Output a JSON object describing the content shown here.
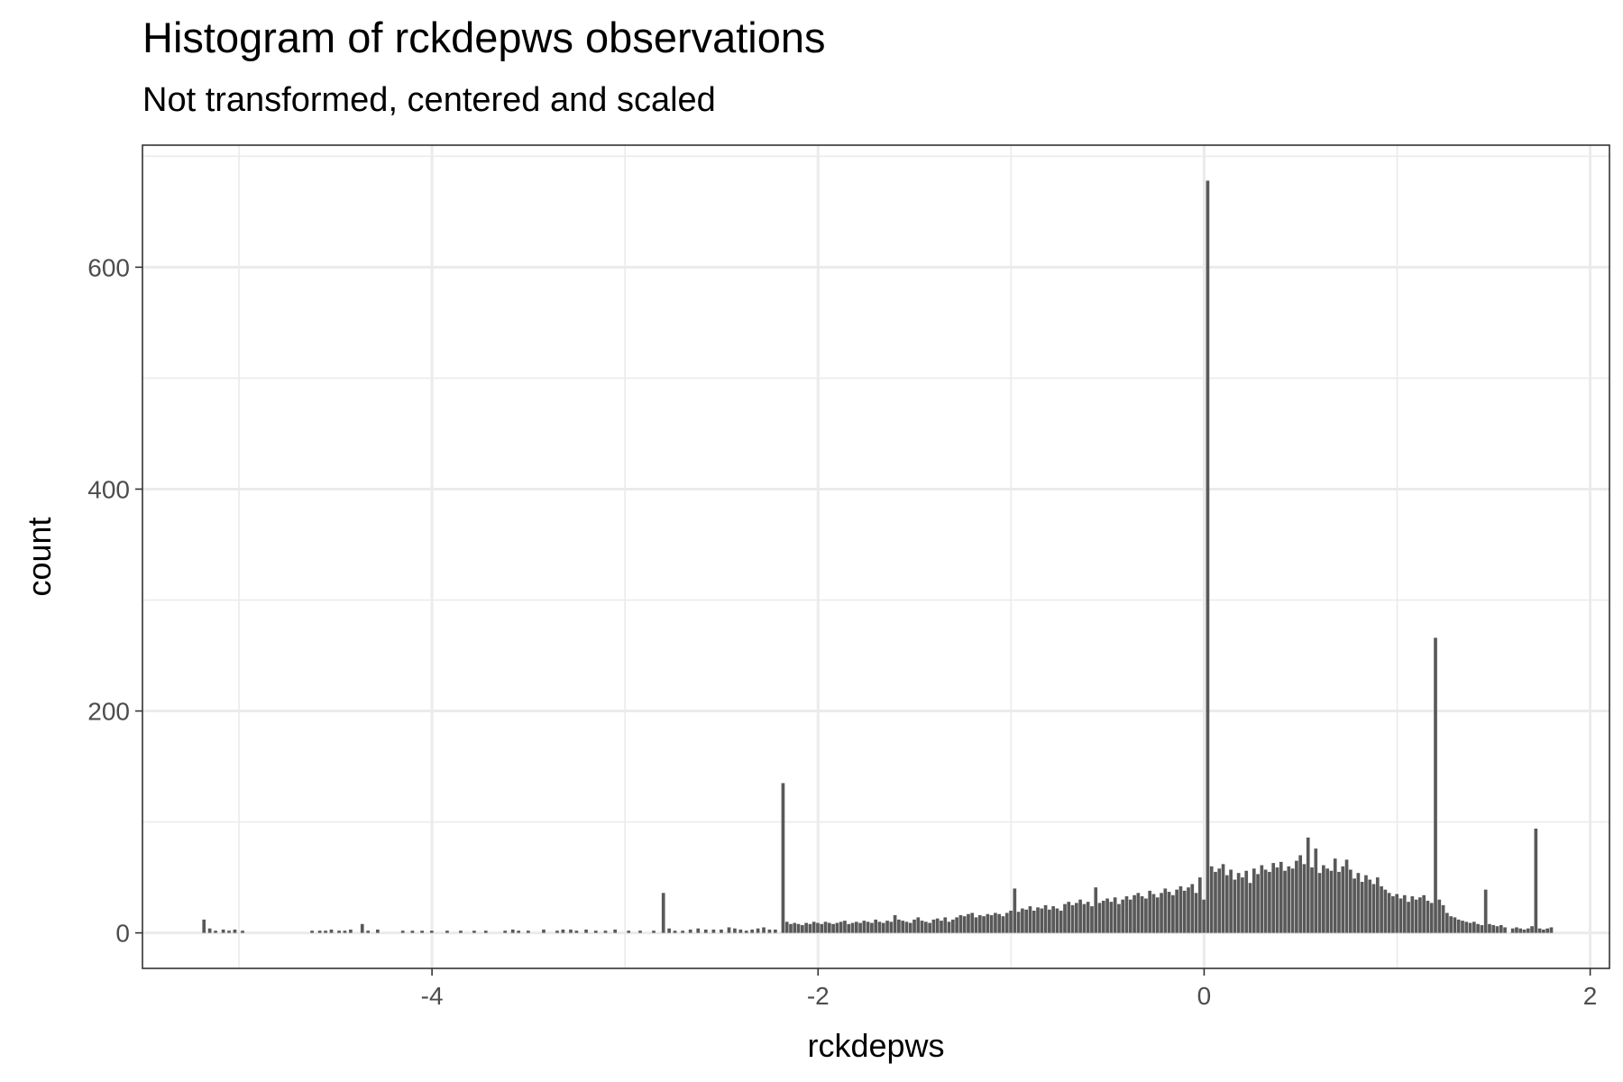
{
  "chart_data": {
    "type": "bar",
    "title": "Histogram of rckdepws observations",
    "subtitle": "Not transformed, centered and scaled",
    "xlabel": "rckdepws",
    "ylabel": "count",
    "xlim": [
      -5.5,
      2.1
    ],
    "ylim": [
      -32,
      710
    ],
    "x_ticks": [
      -4,
      -2,
      0,
      2
    ],
    "y_ticks": [
      0,
      200,
      400,
      600
    ],
    "bin_width": 0.02,
    "grid": true,
    "bar_color": "#595959",
    "bars": [
      [
        -5.18,
        12
      ],
      [
        -5.15,
        4
      ],
      [
        -5.12,
        2
      ],
      [
        -5.08,
        3
      ],
      [
        -5.05,
        2
      ],
      [
        -5.02,
        3
      ],
      [
        -4.98,
        2
      ],
      [
        -4.62,
        2
      ],
      [
        -4.58,
        2
      ],
      [
        -4.55,
        2
      ],
      [
        -4.52,
        3
      ],
      [
        -4.48,
        2
      ],
      [
        -4.45,
        2
      ],
      [
        -4.42,
        3
      ],
      [
        -4.36,
        8
      ],
      [
        -4.33,
        2
      ],
      [
        -4.28,
        3
      ],
      [
        -4.15,
        2
      ],
      [
        -4.1,
        2
      ],
      [
        -4.05,
        2
      ],
      [
        -4.0,
        2
      ],
      [
        -3.92,
        2
      ],
      [
        -3.85,
        2
      ],
      [
        -3.78,
        2
      ],
      [
        -3.72,
        2
      ],
      [
        -3.62,
        2
      ],
      [
        -3.58,
        3
      ],
      [
        -3.55,
        2
      ],
      [
        -3.5,
        2
      ],
      [
        -3.42,
        3
      ],
      [
        -3.35,
        2
      ],
      [
        -3.32,
        3
      ],
      [
        -3.28,
        3
      ],
      [
        -3.25,
        2
      ],
      [
        -3.2,
        3
      ],
      [
        -3.15,
        2
      ],
      [
        -3.1,
        2
      ],
      [
        -3.05,
        3
      ],
      [
        -2.98,
        2
      ],
      [
        -2.92,
        2
      ],
      [
        -2.85,
        2
      ],
      [
        -2.8,
        36
      ],
      [
        -2.77,
        4
      ],
      [
        -2.74,
        2
      ],
      [
        -2.7,
        2
      ],
      [
        -2.66,
        3
      ],
      [
        -2.62,
        4
      ],
      [
        -2.58,
        3
      ],
      [
        -2.54,
        3
      ],
      [
        -2.5,
        3
      ],
      [
        -2.46,
        5
      ],
      [
        -2.43,
        4
      ],
      [
        -2.4,
        3
      ],
      [
        -2.37,
        2
      ],
      [
        -2.34,
        3
      ],
      [
        -2.31,
        4
      ],
      [
        -2.28,
        5
      ],
      [
        -2.25,
        3
      ],
      [
        -2.22,
        3
      ],
      [
        -2.18,
        135
      ],
      [
        -2.16,
        10
      ],
      [
        -2.14,
        8
      ],
      [
        -2.12,
        9
      ],
      [
        -2.1,
        8
      ],
      [
        -2.08,
        7
      ],
      [
        -2.06,
        9
      ],
      [
        -2.04,
        8
      ],
      [
        -2.02,
        10
      ],
      [
        -2.0,
        9
      ],
      [
        -1.98,
        8
      ],
      [
        -1.96,
        10
      ],
      [
        -1.94,
        9
      ],
      [
        -1.92,
        8
      ],
      [
        -1.9,
        9
      ],
      [
        -1.88,
        10
      ],
      [
        -1.86,
        11
      ],
      [
        -1.84,
        8
      ],
      [
        -1.82,
        9
      ],
      [
        -1.8,
        10
      ],
      [
        -1.78,
        9
      ],
      [
        -1.76,
        11
      ],
      [
        -1.74,
        10
      ],
      [
        -1.72,
        9
      ],
      [
        -1.7,
        12
      ],
      [
        -1.68,
        10
      ],
      [
        -1.66,
        9
      ],
      [
        -1.64,
        11
      ],
      [
        -1.62,
        10
      ],
      [
        -1.6,
        16
      ],
      [
        -1.58,
        12
      ],
      [
        -1.56,
        11
      ],
      [
        -1.54,
        10
      ],
      [
        -1.52,
        9
      ],
      [
        -1.5,
        12
      ],
      [
        -1.48,
        14
      ],
      [
        -1.46,
        11
      ],
      [
        -1.44,
        10
      ],
      [
        -1.42,
        9
      ],
      [
        -1.4,
        12
      ],
      [
        -1.38,
        13
      ],
      [
        -1.36,
        11
      ],
      [
        -1.34,
        14
      ],
      [
        -1.32,
        10
      ],
      [
        -1.3,
        12
      ],
      [
        -1.28,
        14
      ],
      [
        -1.26,
        16
      ],
      [
        -1.24,
        15
      ],
      [
        -1.22,
        17
      ],
      [
        -1.2,
        18
      ],
      [
        -1.18,
        14
      ],
      [
        -1.16,
        16
      ],
      [
        -1.14,
        15
      ],
      [
        -1.12,
        17
      ],
      [
        -1.1,
        16
      ],
      [
        -1.08,
        18
      ],
      [
        -1.06,
        17
      ],
      [
        -1.04,
        15
      ],
      [
        -1.02,
        18
      ],
      [
        -1.0,
        20
      ],
      [
        -0.98,
        40
      ],
      [
        -0.96,
        19
      ],
      [
        -0.94,
        22
      ],
      [
        -0.92,
        21
      ],
      [
        -0.9,
        24
      ],
      [
        -0.88,
        20
      ],
      [
        -0.86,
        23
      ],
      [
        -0.84,
        22
      ],
      [
        -0.82,
        25
      ],
      [
        -0.8,
        21
      ],
      [
        -0.78,
        24
      ],
      [
        -0.76,
        22
      ],
      [
        -0.74,
        20
      ],
      [
        -0.72,
        26
      ],
      [
        -0.7,
        28
      ],
      [
        -0.68,
        25
      ],
      [
        -0.66,
        27
      ],
      [
        -0.64,
        30
      ],
      [
        -0.62,
        26
      ],
      [
        -0.6,
        28
      ],
      [
        -0.58,
        24
      ],
      [
        -0.56,
        41
      ],
      [
        -0.54,
        27
      ],
      [
        -0.52,
        29
      ],
      [
        -0.5,
        31
      ],
      [
        -0.48,
        28
      ],
      [
        -0.46,
        32
      ],
      [
        -0.44,
        26
      ],
      [
        -0.42,
        30
      ],
      [
        -0.4,
        33
      ],
      [
        -0.38,
        30
      ],
      [
        -0.36,
        34
      ],
      [
        -0.34,
        36
      ],
      [
        -0.32,
        33
      ],
      [
        -0.3,
        31
      ],
      [
        -0.28,
        38
      ],
      [
        -0.26,
        35
      ],
      [
        -0.24,
        32
      ],
      [
        -0.22,
        36
      ],
      [
        -0.2,
        40
      ],
      [
        -0.18,
        37
      ],
      [
        -0.16,
        34
      ],
      [
        -0.14,
        39
      ],
      [
        -0.12,
        42
      ],
      [
        -0.1,
        38
      ],
      [
        -0.08,
        41
      ],
      [
        -0.06,
        44
      ],
      [
        -0.04,
        36
      ],
      [
        -0.02,
        50
      ],
      [
        0.0,
        30
      ],
      [
        0.02,
        678
      ],
      [
        0.04,
        60
      ],
      [
        0.06,
        55
      ],
      [
        0.08,
        58
      ],
      [
        0.1,
        62
      ],
      [
        0.12,
        52
      ],
      [
        0.14,
        57
      ],
      [
        0.16,
        48
      ],
      [
        0.18,
        54
      ],
      [
        0.2,
        50
      ],
      [
        0.22,
        56
      ],
      [
        0.24,
        45
      ],
      [
        0.26,
        58
      ],
      [
        0.28,
        53
      ],
      [
        0.3,
        61
      ],
      [
        0.32,
        57
      ],
      [
        0.34,
        55
      ],
      [
        0.36,
        63
      ],
      [
        0.38,
        59
      ],
      [
        0.4,
        64
      ],
      [
        0.42,
        56
      ],
      [
        0.44,
        60
      ],
      [
        0.46,
        58
      ],
      [
        0.48,
        65
      ],
      [
        0.5,
        70
      ],
      [
        0.52,
        62
      ],
      [
        0.54,
        86
      ],
      [
        0.56,
        59
      ],
      [
        0.58,
        76
      ],
      [
        0.6,
        54
      ],
      [
        0.62,
        61
      ],
      [
        0.64,
        58
      ],
      [
        0.66,
        56
      ],
      [
        0.68,
        67
      ],
      [
        0.7,
        55
      ],
      [
        0.72,
        60
      ],
      [
        0.74,
        66
      ],
      [
        0.76,
        57
      ],
      [
        0.78,
        49
      ],
      [
        0.8,
        54
      ],
      [
        0.82,
        46
      ],
      [
        0.84,
        52
      ],
      [
        0.86,
        48
      ],
      [
        0.88,
        44
      ],
      [
        0.9,
        50
      ],
      [
        0.92,
        42
      ],
      [
        0.94,
        39
      ],
      [
        0.96,
        36
      ],
      [
        0.98,
        33
      ],
      [
        1.0,
        35
      ],
      [
        1.02,
        31
      ],
      [
        1.04,
        34
      ],
      [
        1.06,
        28
      ],
      [
        1.08,
        33
      ],
      [
        1.1,
        30
      ],
      [
        1.12,
        32
      ],
      [
        1.14,
        34
      ],
      [
        1.16,
        29
      ],
      [
        1.18,
        27
      ],
      [
        1.2,
        266
      ],
      [
        1.22,
        30
      ],
      [
        1.24,
        25
      ],
      [
        1.26,
        18
      ],
      [
        1.28,
        15
      ],
      [
        1.3,
        14
      ],
      [
        1.32,
        12
      ],
      [
        1.34,
        11
      ],
      [
        1.36,
        10
      ],
      [
        1.38,
        9
      ],
      [
        1.4,
        10
      ],
      [
        1.42,
        8
      ],
      [
        1.44,
        7
      ],
      [
        1.46,
        39
      ],
      [
        1.48,
        8
      ],
      [
        1.5,
        7
      ],
      [
        1.52,
        6
      ],
      [
        1.54,
        7
      ],
      [
        1.56,
        5
      ],
      [
        1.6,
        4
      ],
      [
        1.62,
        5
      ],
      [
        1.64,
        4
      ],
      [
        1.66,
        3
      ],
      [
        1.68,
        4
      ],
      [
        1.7,
        6
      ],
      [
        1.72,
        94
      ],
      [
        1.74,
        4
      ],
      [
        1.76,
        3
      ],
      [
        1.78,
        4
      ],
      [
        1.8,
        5
      ]
    ]
  }
}
